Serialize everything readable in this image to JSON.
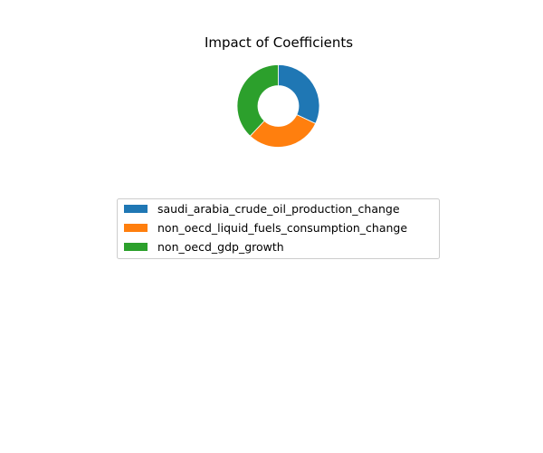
{
  "chart_data": {
    "type": "pie",
    "variant": "donut",
    "title": "Impact of Coefficients",
    "start_angle_deg": 90,
    "direction": "clockwise",
    "slices": [
      {
        "label": "saudi_arabia_crude_oil_production_change",
        "value": 0.32,
        "color": "#1f77b4"
      },
      {
        "label": "non_oecd_liquid_fuels_consumption_change",
        "value": 0.3,
        "color": "#ff7f0e"
      },
      {
        "label": "non_oecd_gdp_growth",
        "value": 0.38,
        "color": "#2ca02c"
      }
    ],
    "legend_position": "below"
  }
}
